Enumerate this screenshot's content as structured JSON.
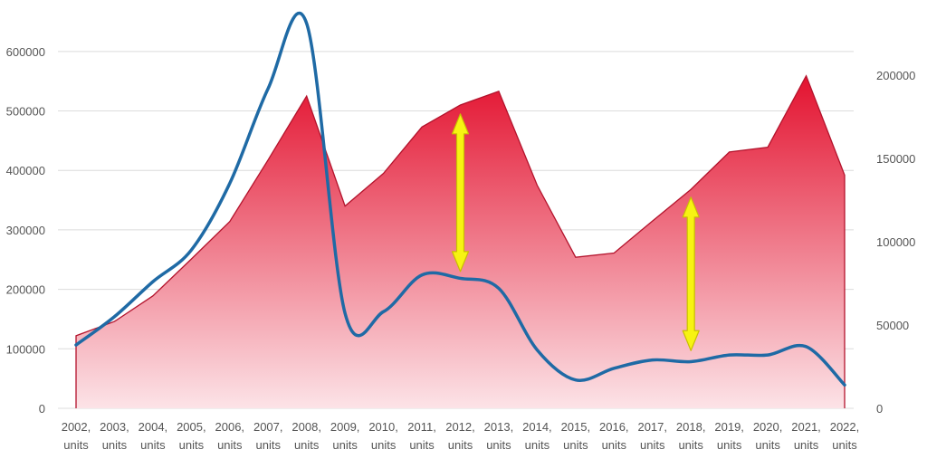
{
  "chart_data": {
    "type": "area+line",
    "title": "",
    "xlabel": "",
    "ylabel": "",
    "grid": true,
    "categories": [
      "2002",
      "2003",
      "2004",
      "2005",
      "2006",
      "2007",
      "2008",
      "2009",
      "2010",
      "2011",
      "2012",
      "2013",
      "2014",
      "2015",
      "2016",
      "2017",
      "2018",
      "2019",
      "2020",
      "2021",
      "2022"
    ],
    "unit_label": "units",
    "x_separator": ",",
    "left_axis": {
      "ylim": [
        0,
        650000
      ],
      "ticks": [
        0,
        100000,
        200000,
        300000,
        400000,
        500000,
        600000
      ]
    },
    "right_axis": {
      "ylim": [
        0,
        232000
      ],
      "ticks": [
        0,
        50000,
        100000,
        150000,
        200000
      ]
    },
    "series": [
      {
        "name": "area",
        "type": "area",
        "axis": "left",
        "color_top": "#e3122f",
        "color_bottom": "#fce3e7",
        "stroke": "#b3132c",
        "values": [
          122000,
          146000,
          189000,
          251000,
          314000,
          418000,
          525000,
          340000,
          395000,
          473000,
          510000,
          533000,
          375000,
          254000,
          261000,
          315000,
          368000,
          431000,
          439000,
          559000,
          392000
        ]
      },
      {
        "name": "line",
        "type": "line",
        "smooth": true,
        "axis": "right",
        "color": "#1f6aa5",
        "values": [
          38000,
          55000,
          76000,
          95000,
          135000,
          192000,
          231000,
          57000,
          58000,
          80000,
          78000,
          72000,
          35000,
          17000,
          24000,
          29000,
          28000,
          32000,
          32000,
          37000,
          14000
        ]
      }
    ],
    "annotations": [
      {
        "type": "double-arrow",
        "color": "#f7f312",
        "stroke": "#c9bf00",
        "category": "2012",
        "from": 230000,
        "to": 495000,
        "axis": "left"
      },
      {
        "type": "double-arrow",
        "color": "#f7f312",
        "stroke": "#c9bf00",
        "category": "2018",
        "from": 97000,
        "to": 355000,
        "axis": "left"
      }
    ]
  }
}
